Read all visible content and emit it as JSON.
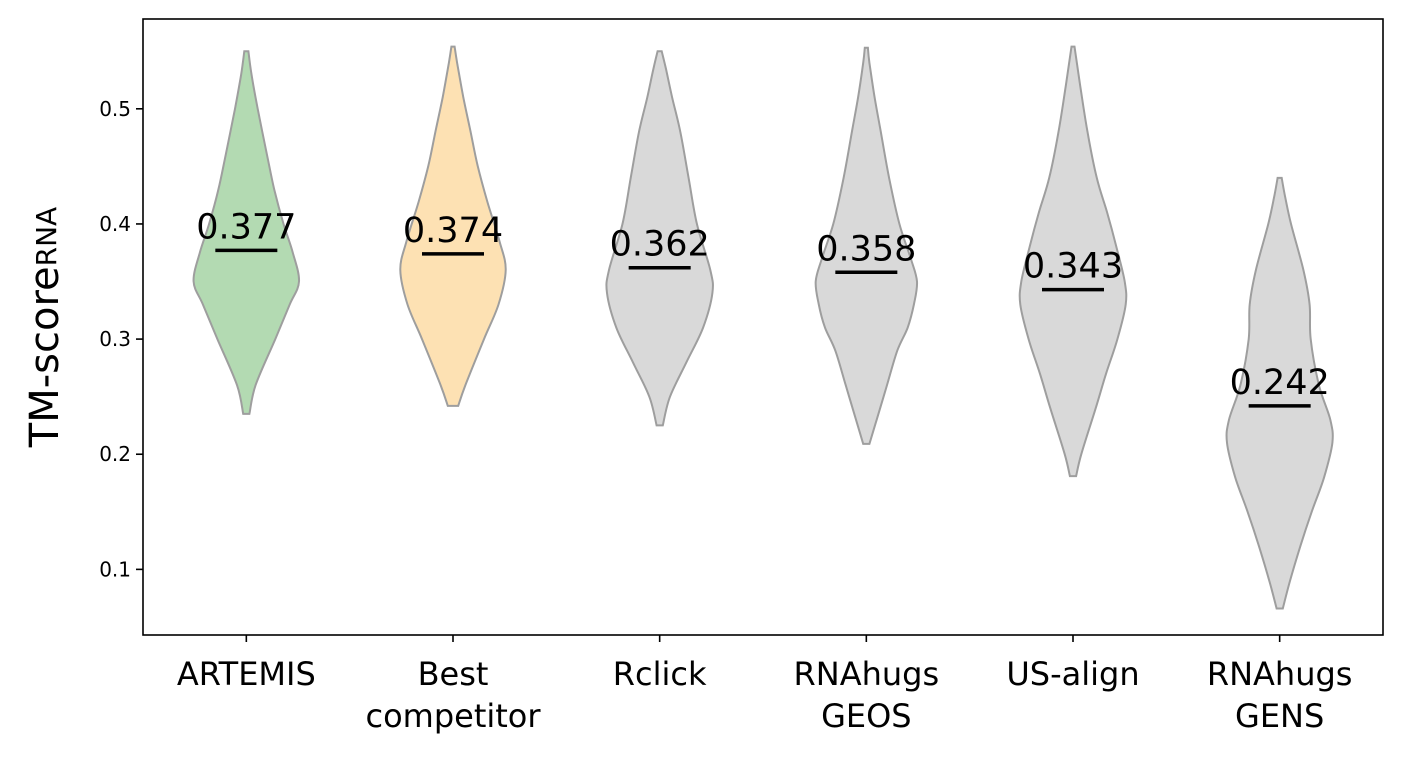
{
  "chart_data": {
    "type": "violin",
    "title": "",
    "xlabel": "",
    "ylabel": {
      "text": "TM-score",
      "subscript": "RNA"
    },
    "ylim": [
      0.043,
      0.578
    ],
    "yticks": [
      0.1,
      0.2,
      0.3,
      0.4,
      0.5
    ],
    "ytick_labels": [
      "0.1",
      "0.2",
      "0.3",
      "0.4",
      "0.5"
    ],
    "grid": false,
    "categories": [
      {
        "lines": [
          "ARTEMIS"
        ]
      },
      {
        "lines": [
          "Best",
          "competitor"
        ]
      },
      {
        "lines": [
          "Rclick"
        ]
      },
      {
        "lines": [
          "RNAhugs",
          "GEOS"
        ]
      },
      {
        "lines": [
          "US-align"
        ]
      },
      {
        "lines": [
          "RNAhugs",
          "GENS"
        ]
      }
    ],
    "series": [
      {
        "min": 0.235,
        "max": 0.55,
        "median": 0.377,
        "median_label": "0.377",
        "color": "#b3dab2",
        "profile": [
          [
            0.235,
            0.03
          ],
          [
            0.26,
            0.09
          ],
          [
            0.3,
            0.28
          ],
          [
            0.33,
            0.42
          ],
          [
            0.35,
            0.51
          ],
          [
            0.375,
            0.45
          ],
          [
            0.4,
            0.36
          ],
          [
            0.43,
            0.27
          ],
          [
            0.46,
            0.2
          ],
          [
            0.5,
            0.11
          ],
          [
            0.53,
            0.05
          ],
          [
            0.55,
            0.02
          ]
        ]
      },
      {
        "min": 0.242,
        "max": 0.554,
        "median": 0.374,
        "median_label": "0.374",
        "color": "#fde1b3",
        "profile": [
          [
            0.242,
            0.05
          ],
          [
            0.26,
            0.12
          ],
          [
            0.3,
            0.3
          ],
          [
            0.33,
            0.44
          ],
          [
            0.36,
            0.51
          ],
          [
            0.385,
            0.45
          ],
          [
            0.42,
            0.33
          ],
          [
            0.45,
            0.24
          ],
          [
            0.48,
            0.17
          ],
          [
            0.51,
            0.1
          ],
          [
            0.54,
            0.04
          ],
          [
            0.554,
            0.015
          ]
        ]
      },
      {
        "min": 0.225,
        "max": 0.55,
        "median": 0.362,
        "median_label": "0.362",
        "color": "#d9d9d9",
        "profile": [
          [
            0.225,
            0.03
          ],
          [
            0.25,
            0.1
          ],
          [
            0.28,
            0.26
          ],
          [
            0.31,
            0.42
          ],
          [
            0.34,
            0.51
          ],
          [
            0.36,
            0.49
          ],
          [
            0.4,
            0.36
          ],
          [
            0.44,
            0.28
          ],
          [
            0.48,
            0.2
          ],
          [
            0.51,
            0.12
          ],
          [
            0.535,
            0.06
          ],
          [
            0.55,
            0.02
          ]
        ]
      },
      {
        "min": 0.209,
        "max": 0.553,
        "median": 0.358,
        "median_label": "0.358",
        "color": "#d9d9d9",
        "profile": [
          [
            0.209,
            0.03
          ],
          [
            0.23,
            0.1
          ],
          [
            0.26,
            0.2
          ],
          [
            0.29,
            0.3
          ],
          [
            0.31,
            0.4
          ],
          [
            0.33,
            0.46
          ],
          [
            0.35,
            0.49
          ],
          [
            0.37,
            0.43
          ],
          [
            0.4,
            0.32
          ],
          [
            0.44,
            0.22
          ],
          [
            0.48,
            0.14
          ],
          [
            0.51,
            0.08
          ],
          [
            0.54,
            0.03
          ],
          [
            0.553,
            0.015
          ]
        ]
      },
      {
        "min": 0.181,
        "max": 0.554,
        "median": 0.343,
        "median_label": "0.343",
        "color": "#d9d9d9",
        "profile": [
          [
            0.181,
            0.03
          ],
          [
            0.2,
            0.08
          ],
          [
            0.24,
            0.22
          ],
          [
            0.27,
            0.32
          ],
          [
            0.3,
            0.43
          ],
          [
            0.33,
            0.51
          ],
          [
            0.35,
            0.5
          ],
          [
            0.38,
            0.42
          ],
          [
            0.41,
            0.33
          ],
          [
            0.44,
            0.23
          ],
          [
            0.48,
            0.14
          ],
          [
            0.52,
            0.07
          ],
          [
            0.554,
            0.015
          ]
        ]
      },
      {
        "min": 0.066,
        "max": 0.44,
        "median": 0.242,
        "median_label": "0.242",
        "color": "#d9d9d9",
        "profile": [
          [
            0.066,
            0.03
          ],
          [
            0.09,
            0.1
          ],
          [
            0.12,
            0.2
          ],
          [
            0.15,
            0.31
          ],
          [
            0.18,
            0.43
          ],
          [
            0.21,
            0.51
          ],
          [
            0.23,
            0.49
          ],
          [
            0.26,
            0.38
          ],
          [
            0.3,
            0.3
          ],
          [
            0.33,
            0.29
          ],
          [
            0.36,
            0.23
          ],
          [
            0.4,
            0.11
          ],
          [
            0.425,
            0.05
          ],
          [
            0.44,
            0.02
          ]
        ]
      }
    ]
  }
}
